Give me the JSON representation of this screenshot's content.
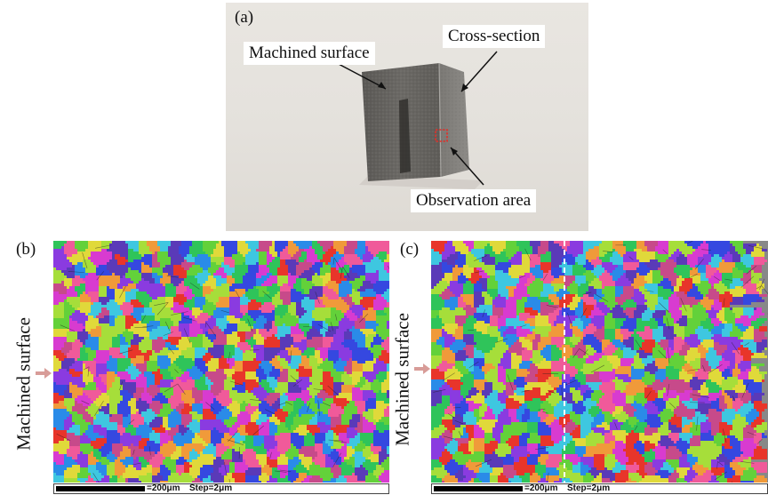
{
  "panels": {
    "a": {
      "label": "(a)",
      "callouts": {
        "machined_surface": "Machined surface",
        "cross_section": "Cross-section",
        "observation_area": "Observation area"
      }
    },
    "b": {
      "label": "(b)",
      "side_label": "Machined surface",
      "scale_text": "=200μm",
      "step_text": "Step=2μm"
    },
    "c": {
      "label": "(c)",
      "side_label": "Machined surface",
      "scale_text": "=200μm",
      "step_text": "Step=2μm"
    }
  },
  "colors": {
    "grain_palette": [
      "#e8352a",
      "#f05a9a",
      "#d83bd0",
      "#8a3be0",
      "#3548e0",
      "#2a8be8",
      "#3ec7e0",
      "#2fc45a",
      "#63d13a",
      "#a6de3a",
      "#e0d93a",
      "#f09a3a",
      "#c74a8a",
      "#5a3ab8"
    ],
    "arrow": "#d89c98",
    "marker_box": "#e0302a"
  }
}
